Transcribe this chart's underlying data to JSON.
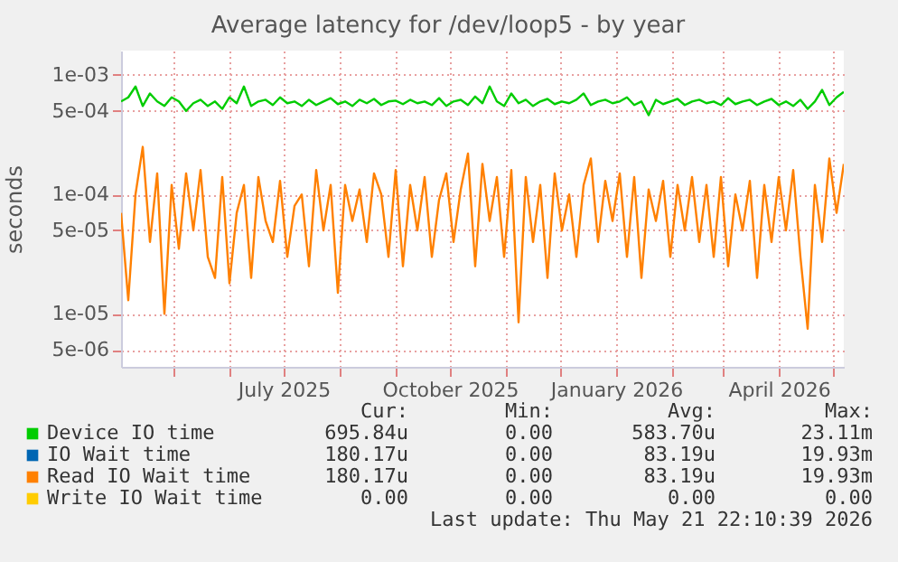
{
  "chart_data": {
    "type": "line",
    "title": "Average latency for /dev/loop5 - by year",
    "ylabel": "seconds",
    "log": true,
    "grid": true,
    "legend": "bottom",
    "ylim": [
      3.6e-06,
      0.0016
    ],
    "yticks": [
      {
        "value": 0.001,
        "label": "1e-03"
      },
      {
        "value": 0.0005,
        "label": "5e-04"
      },
      {
        "value": 0.0001,
        "label": "1e-04"
      },
      {
        "value": 5e-05,
        "label": "5e-05"
      },
      {
        "value": 1e-05,
        "label": "1e-05"
      },
      {
        "value": 5e-06,
        "label": "5e-06"
      }
    ],
    "xlim": [
      "2025-04-02",
      "2026-05-07"
    ],
    "xticks": [
      {
        "value": "2025-05-01",
        "label": null
      },
      {
        "value": "2025-06-01",
        "label": null
      },
      {
        "value": "2025-07-01",
        "label": "July 2025"
      },
      {
        "value": "2025-08-01",
        "label": null
      },
      {
        "value": "2025-09-01",
        "label": null
      },
      {
        "value": "2025-10-01",
        "label": "October 2025"
      },
      {
        "value": "2025-11-01",
        "label": null
      },
      {
        "value": "2025-12-01",
        "label": null
      },
      {
        "value": "2026-01-01",
        "label": "January 2026"
      },
      {
        "value": "2026-02-01",
        "label": null
      },
      {
        "value": "2026-03-01",
        "label": null
      },
      {
        "value": "2026-04-01",
        "label": "April 2026"
      },
      {
        "value": "2026-05-01",
        "label": null
      }
    ],
    "x": [
      "2025-04-02",
      "2025-04-06",
      "2025-04-10",
      "2025-04-14",
      "2025-04-18",
      "2025-04-22",
      "2025-04-26",
      "2025-04-30",
      "2025-05-04",
      "2025-05-08",
      "2025-05-12",
      "2025-05-16",
      "2025-05-20",
      "2025-05-24",
      "2025-05-28",
      "2025-06-01",
      "2025-06-05",
      "2025-06-09",
      "2025-06-13",
      "2025-06-17",
      "2025-06-21",
      "2025-06-25",
      "2025-06-29",
      "2025-07-03",
      "2025-07-07",
      "2025-07-11",
      "2025-07-15",
      "2025-07-19",
      "2025-07-23",
      "2025-07-27",
      "2025-07-31",
      "2025-08-04",
      "2025-08-08",
      "2025-08-12",
      "2025-08-16",
      "2025-08-20",
      "2025-08-24",
      "2025-08-28",
      "2025-09-01",
      "2025-09-05",
      "2025-09-09",
      "2025-09-13",
      "2025-09-17",
      "2025-09-21",
      "2025-09-25",
      "2025-09-29",
      "2025-10-03",
      "2025-10-07",
      "2025-10-11",
      "2025-10-15",
      "2025-10-19",
      "2025-10-23",
      "2025-10-27",
      "2025-10-31",
      "2025-11-04",
      "2025-11-08",
      "2025-11-12",
      "2025-11-16",
      "2025-11-20",
      "2025-11-24",
      "2025-11-28",
      "2025-12-02",
      "2025-12-06",
      "2025-12-10",
      "2025-12-14",
      "2025-12-18",
      "2025-12-22",
      "2025-12-26",
      "2025-12-30",
      "2026-01-03",
      "2026-01-07",
      "2026-01-11",
      "2026-01-15",
      "2026-01-19",
      "2026-01-23",
      "2026-01-27",
      "2026-01-31",
      "2026-02-04",
      "2026-02-08",
      "2026-02-12",
      "2026-02-16",
      "2026-02-20",
      "2026-02-24",
      "2026-02-28",
      "2026-03-04",
      "2026-03-08",
      "2026-03-12",
      "2026-03-16",
      "2026-03-20",
      "2026-03-24",
      "2026-03-28",
      "2026-04-01",
      "2026-04-05",
      "2026-04-09",
      "2026-04-13",
      "2026-04-17",
      "2026-04-21",
      "2026-04-25",
      "2026-04-29",
      "2026-05-03",
      "2026-05-07"
    ],
    "series": [
      {
        "name": "Device IO time",
        "color": "#00cc00",
        "values": [
          0.0006,
          0.00065,
          0.0008,
          0.00055,
          0.0007,
          0.0006,
          0.00055,
          0.00065,
          0.0006,
          0.0005,
          0.00058,
          0.00062,
          0.00055,
          0.0006,
          0.00052,
          0.00065,
          0.00058,
          0.0008,
          0.00055,
          0.0006,
          0.00062,
          0.00056,
          0.00065,
          0.00058,
          0.0006,
          0.00055,
          0.00062,
          0.00056,
          0.0006,
          0.00064,
          0.00057,
          0.0006,
          0.00055,
          0.00062,
          0.00058,
          0.00063,
          0.00056,
          0.0006,
          0.00061,
          0.00057,
          0.00062,
          0.00058,
          0.0006,
          0.00056,
          0.00064,
          0.00055,
          0.0006,
          0.00062,
          0.00056,
          0.00066,
          0.00058,
          0.0008,
          0.0006,
          0.00055,
          0.0007,
          0.00058,
          0.00062,
          0.00055,
          0.0006,
          0.00063,
          0.00057,
          0.0006,
          0.00058,
          0.00062,
          0.0007,
          0.00056,
          0.0006,
          0.00062,
          0.00058,
          0.0006,
          0.00065,
          0.00056,
          0.0006,
          0.00046,
          0.00062,
          0.00057,
          0.0006,
          0.00063,
          0.00056,
          0.0006,
          0.00062,
          0.00058,
          0.0006,
          0.00056,
          0.00064,
          0.00057,
          0.0006,
          0.00062,
          0.00056,
          0.0006,
          0.00063,
          0.00056,
          0.0006,
          0.00055,
          0.00062,
          0.00052,
          0.0006,
          0.00075,
          0.00056,
          0.00065,
          0.00072
        ]
      },
      {
        "name": "IO Wait time",
        "color": "#0066b3",
        "values": [
          null,
          null,
          null,
          null,
          null,
          null,
          null,
          null,
          null,
          null,
          null,
          null,
          null,
          null,
          null,
          null,
          null,
          null,
          null,
          null,
          null,
          null,
          null,
          null,
          null,
          null,
          null,
          null,
          null,
          null,
          null,
          null,
          null,
          null,
          null,
          null,
          null,
          null,
          null,
          null,
          null,
          null,
          null,
          null,
          null,
          null,
          null,
          null,
          null,
          null,
          null,
          null,
          null,
          null,
          null,
          null,
          null,
          null,
          null,
          null,
          null,
          null,
          null,
          null,
          null,
          null,
          null,
          null,
          null,
          null,
          null,
          null,
          null,
          null,
          null,
          null,
          null,
          null,
          null,
          null,
          null,
          null,
          null,
          null,
          null,
          null,
          null,
          null,
          null,
          null,
          null,
          null,
          null,
          null,
          null,
          null,
          null,
          null,
          null,
          null,
          null
        ]
      },
      {
        "name": "Read IO Wait time",
        "color": "#ff8000",
        "values": [
          7e-05,
          1.3e-05,
          0.0001,
          0.00025,
          4e-05,
          0.00015,
          1e-05,
          0.00012,
          3.5e-05,
          0.00015,
          5e-05,
          0.00016,
          3e-05,
          2e-05,
          0.00014,
          1.8e-05,
          7e-05,
          0.00012,
          2e-05,
          0.00014,
          6e-05,
          4e-05,
          0.00013,
          3e-05,
          8e-05,
          0.0001,
          2.5e-05,
          0.00016,
          5e-05,
          0.00012,
          1.5e-05,
          0.00012,
          6e-05,
          0.00011,
          4e-05,
          0.00015,
          0.0001,
          3e-05,
          0.00016,
          2.5e-05,
          0.00012,
          5e-05,
          0.00014,
          3e-05,
          9e-05,
          0.00015,
          4e-05,
          0.00011,
          0.00022,
          2.5e-05,
          0.00018,
          6e-05,
          0.00014,
          3e-05,
          0.00016,
          8.5e-06,
          0.00014,
          4e-05,
          0.00012,
          2e-05,
          0.00015,
          5e-05,
          0.0001,
          3e-05,
          0.00012,
          0.0002,
          4e-05,
          0.00013,
          6e-05,
          0.00015,
          3e-05,
          0.00014,
          2e-05,
          0.00011,
          6e-05,
          0.00013,
          3e-05,
          0.00012,
          5e-05,
          0.00014,
          4e-05,
          0.00012,
          3e-05,
          0.00014,
          2.5e-05,
          0.0001,
          5e-05,
          0.00013,
          2e-05,
          0.00012,
          4e-05,
          0.00014,
          5e-05,
          0.00016,
          3e-05,
          7.5e-06,
          0.00012,
          4e-05,
          0.0002,
          7e-05,
          0.00018
        ]
      },
      {
        "name": "Write IO Wait time",
        "color": "#ffcc00",
        "values": [
          null,
          null,
          null,
          null,
          null,
          null,
          null,
          null,
          null,
          null,
          null,
          null,
          null,
          null,
          null,
          null,
          null,
          null,
          null,
          null,
          null,
          null,
          null,
          null,
          null,
          null,
          null,
          null,
          null,
          null,
          null,
          null,
          null,
          null,
          null,
          null,
          null,
          null,
          null,
          null,
          null,
          null,
          null,
          null,
          null,
          null,
          null,
          null,
          null,
          null,
          null,
          null,
          null,
          null,
          null,
          null,
          null,
          null,
          null,
          null,
          null,
          null,
          null,
          null,
          null,
          null,
          null,
          null,
          null,
          null,
          null,
          null,
          null,
          null,
          null,
          null,
          null,
          null,
          null,
          null,
          null,
          null,
          null,
          null,
          null,
          null,
          null,
          null,
          null,
          null,
          null,
          null,
          null,
          null,
          null,
          null,
          null,
          null,
          null,
          null,
          null
        ]
      }
    ],
    "annotations": [
      "Cur:",
      "Min:",
      "Avg:",
      "Max:",
      "695.84u",
      "0.00",
      "583.70u",
      "23.11m",
      "180.17u",
      "0.00",
      "83.19u",
      "19.93m",
      "180.17u",
      "0.00",
      "83.19u",
      "19.93m",
      "0.00",
      "0.00",
      "0.00",
      "0.00",
      "Last update: Thu May 21 22:10:39 2026"
    ]
  }
}
